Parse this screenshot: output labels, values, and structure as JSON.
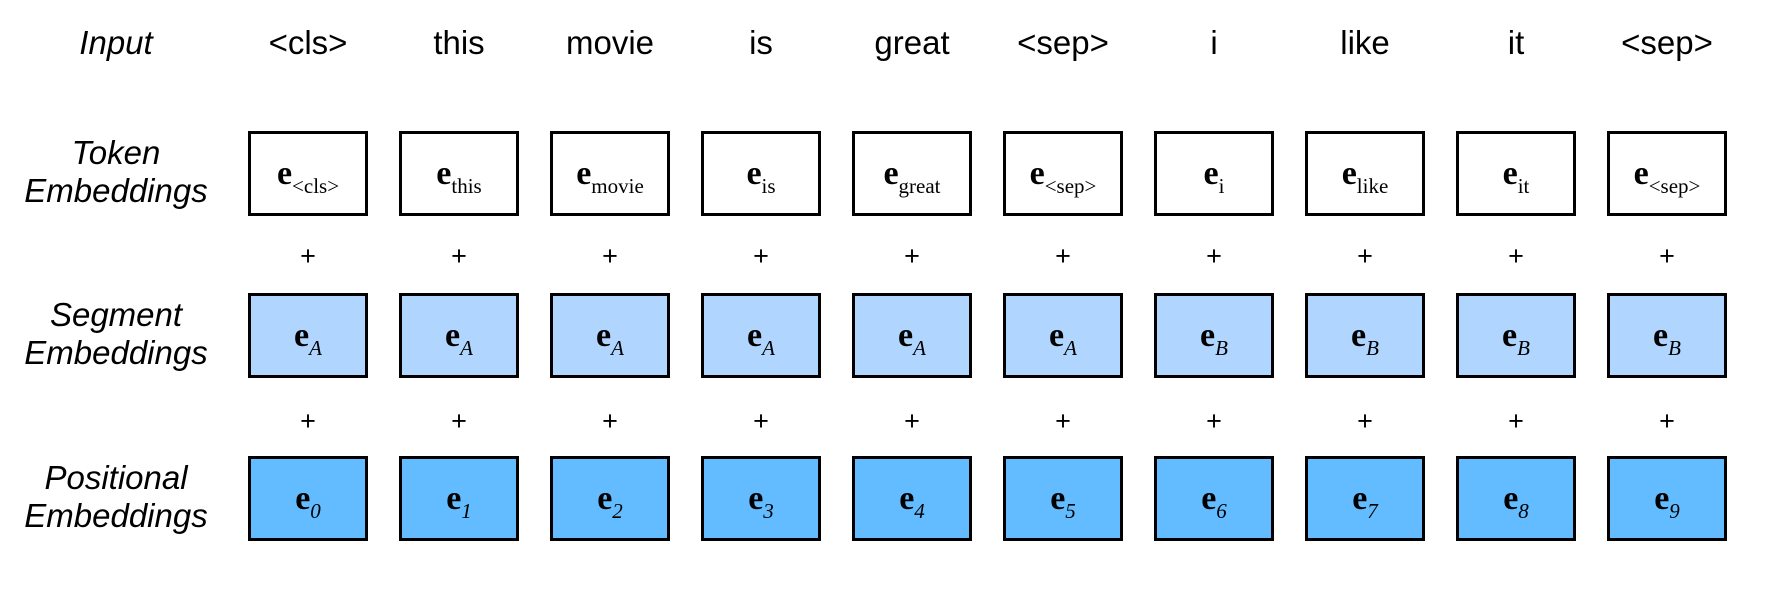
{
  "rows": {
    "input_label": "Input",
    "token_label": [
      "Token",
      "Embeddings"
    ],
    "segment_label": [
      "Segment",
      "Embeddings"
    ],
    "positional_label": [
      "Positional",
      "Embeddings"
    ]
  },
  "input_tokens": [
    "<cls>",
    "this",
    "movie",
    "is",
    "great",
    "<sep>",
    "i",
    "like",
    "it",
    "<sep>"
  ],
  "embedding_symbol": "e",
  "token_subscripts": [
    "<cls>",
    "this",
    "movie",
    "is",
    "great",
    "<sep>",
    "i",
    "like",
    "it",
    "<sep>"
  ],
  "segment_subscripts": [
    "A",
    "A",
    "A",
    "A",
    "A",
    "A",
    "B",
    "B",
    "B",
    "B"
  ],
  "positional_subscripts": [
    "0",
    "1",
    "2",
    "3",
    "4",
    "5",
    "6",
    "7",
    "8",
    "9"
  ],
  "plus_sign": "+",
  "colors": {
    "token_fill": "#ffffff",
    "segment_fill": "#b0d6ff",
    "positional_fill": "#62bcff",
    "border": "#000000"
  }
}
